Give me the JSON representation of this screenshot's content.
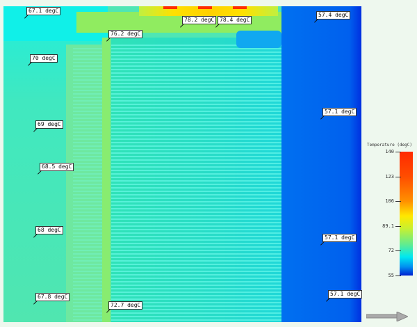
{
  "labels": [
    {
      "text": "67.1 degC"
    },
    {
      "text": "78.2 degC"
    },
    {
      "text": "78.4 degC"
    },
    {
      "text": "57.4 degC"
    },
    {
      "text": "76.2 degC"
    },
    {
      "text": "70 degC"
    },
    {
      "text": "57.1 degC"
    },
    {
      "text": "69 degC"
    },
    {
      "text": "68.5 degC"
    },
    {
      "text": "68 degC"
    },
    {
      "text": "57.1 degC"
    },
    {
      "text": "67.8 degC"
    },
    {
      "text": "72.7 degC"
    },
    {
      "text": "57.1 degC"
    }
  ],
  "legend": {
    "title": "Temperature (degC)",
    "ticks": [
      "140",
      "123",
      "106",
      "89.1",
      "72",
      "55"
    ]
  },
  "colors": {
    "hot": "#ff2a00",
    "cold": "#0020d0"
  }
}
